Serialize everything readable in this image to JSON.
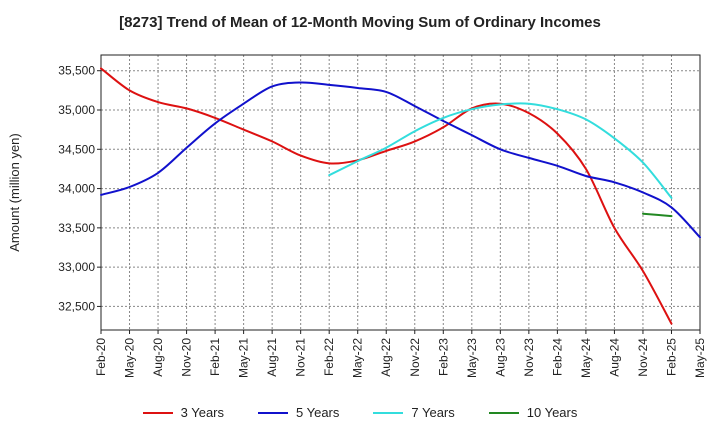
{
  "chart_data": {
    "type": "line",
    "title": "[8273]  Trend of Mean of 12-Month Moving Sum of Ordinary Incomes",
    "xlabel": "",
    "ylabel": "Amount (million yen)",
    "x_ticks": [
      "Feb-20",
      "May-20",
      "Aug-20",
      "Nov-20",
      "Feb-21",
      "May-21",
      "Aug-21",
      "Nov-21",
      "Feb-22",
      "May-22",
      "Aug-22",
      "Nov-22",
      "Feb-23",
      "May-23",
      "Aug-23",
      "Nov-23",
      "Feb-24",
      "May-24",
      "Aug-24",
      "Nov-24",
      "Feb-25",
      "May-25"
    ],
    "y_ticks": [
      32500,
      33000,
      33500,
      34000,
      34500,
      35000,
      35500
    ],
    "y_tick_labels": [
      "32,500",
      "33,000",
      "33,500",
      "34,000",
      "34,500",
      "35,000",
      "35,500"
    ],
    "ylim": [
      32200,
      35700
    ],
    "grid": true,
    "legend_position": "bottom",
    "series": [
      {
        "name": "3 Years",
        "color": "#dd1111",
        "start_index": 0,
        "values": [
          35530,
          35250,
          35100,
          35020,
          34900,
          34750,
          34600,
          34420,
          34320,
          34360,
          34480,
          34600,
          34780,
          35020,
          35080,
          34960,
          34700,
          34250,
          33500,
          32950,
          32280
        ]
      },
      {
        "name": "5 Years",
        "color": "#1111cc",
        "start_index": 0,
        "values": [
          33920,
          34020,
          34200,
          34520,
          34830,
          35080,
          35300,
          35350,
          35320,
          35280,
          35230,
          35050,
          34860,
          34680,
          34500,
          34390,
          34290,
          34160,
          34080,
          33950,
          33760,
          33380
        ]
      },
      {
        "name": "7 Years",
        "color": "#33dddd",
        "start_index": 8,
        "values": [
          34170,
          34350,
          34520,
          34730,
          34900,
          35010,
          35070,
          35080,
          35010,
          34880,
          34640,
          34330,
          33880
        ]
      },
      {
        "name": "10 Years",
        "color": "#228822",
        "start_index": 19,
        "values": [
          33680,
          33650
        ]
      }
    ]
  }
}
